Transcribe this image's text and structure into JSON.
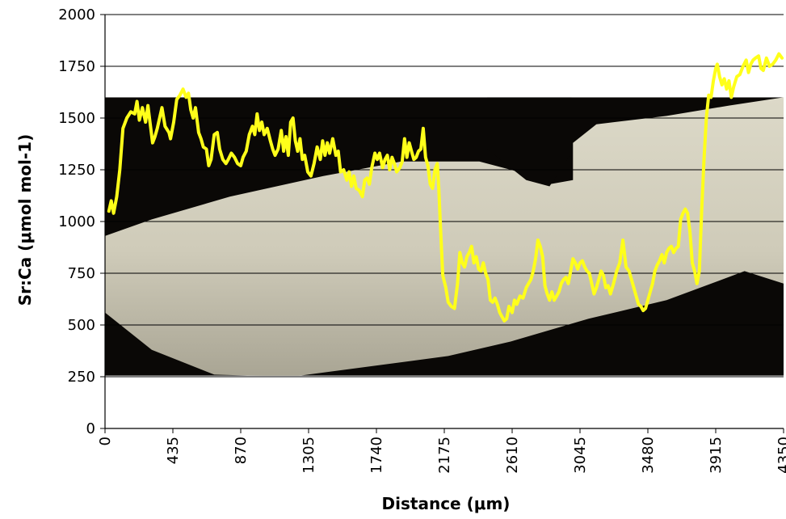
{
  "chart_data": {
    "type": "line",
    "xlabel": "Distance (μm)",
    "ylabel": "Sr:Ca (μmol mol-1)",
    "xlim": [
      0,
      4350
    ],
    "ylim": [
      0,
      2000
    ],
    "x_ticks": [
      0,
      435,
      870,
      1305,
      1740,
      2175,
      2610,
      3045,
      3480,
      3915,
      4350
    ],
    "y_ticks": [
      0,
      250,
      500,
      750,
      1000,
      1250,
      1500,
      1750,
      2000
    ],
    "grid": "horizontal",
    "background_image": {
      "description_icon": "otolith-photo",
      "x_range": [
        0,
        4350
      ],
      "y_range": [
        255,
        1600
      ]
    },
    "colors": {
      "line": "#ffff1a",
      "photo_bg": "#0a0806",
      "otolith": "#d2cfbf"
    },
    "series": [
      {
        "points": [
          [
            25,
            1050
          ],
          [
            40,
            1100
          ],
          [
            55,
            1040
          ],
          [
            75,
            1120
          ],
          [
            95,
            1250
          ],
          [
            115,
            1450
          ],
          [
            140,
            1500
          ],
          [
            165,
            1530
          ],
          [
            190,
            1520
          ],
          [
            205,
            1580
          ],
          [
            220,
            1490
          ],
          [
            240,
            1550
          ],
          [
            260,
            1480
          ],
          [
            275,
            1560
          ],
          [
            290,
            1470
          ],
          [
            305,
            1380
          ],
          [
            320,
            1410
          ],
          [
            335,
            1450
          ],
          [
            350,
            1500
          ],
          [
            365,
            1550
          ],
          [
            385,
            1460
          ],
          [
            410,
            1430
          ],
          [
            420,
            1400
          ],
          [
            440,
            1480
          ],
          [
            460,
            1590
          ],
          [
            480,
            1610
          ],
          [
            500,
            1640
          ],
          [
            520,
            1600
          ],
          [
            535,
            1620
          ],
          [
            550,
            1540
          ],
          [
            565,
            1500
          ],
          [
            580,
            1550
          ],
          [
            600,
            1430
          ],
          [
            615,
            1400
          ],
          [
            630,
            1360
          ],
          [
            650,
            1350
          ],
          [
            665,
            1270
          ],
          [
            680,
            1300
          ],
          [
            700,
            1420
          ],
          [
            720,
            1430
          ],
          [
            735,
            1350
          ],
          [
            755,
            1300
          ],
          [
            775,
            1280
          ],
          [
            790,
            1300
          ],
          [
            810,
            1330
          ],
          [
            830,
            1310
          ],
          [
            850,
            1280
          ],
          [
            870,
            1270
          ],
          [
            885,
            1310
          ],
          [
            905,
            1340
          ],
          [
            925,
            1420
          ],
          [
            945,
            1460
          ],
          [
            960,
            1420
          ],
          [
            975,
            1520
          ],
          [
            990,
            1440
          ],
          [
            1005,
            1480
          ],
          [
            1020,
            1420
          ],
          [
            1040,
            1450
          ],
          [
            1060,
            1390
          ],
          [
            1075,
            1350
          ],
          [
            1090,
            1320
          ],
          [
            1110,
            1350
          ],
          [
            1130,
            1440
          ],
          [
            1145,
            1340
          ],
          [
            1160,
            1410
          ],
          [
            1175,
            1320
          ],
          [
            1190,
            1480
          ],
          [
            1205,
            1500
          ],
          [
            1220,
            1390
          ],
          [
            1235,
            1340
          ],
          [
            1250,
            1400
          ],
          [
            1265,
            1300
          ],
          [
            1280,
            1320
          ],
          [
            1300,
            1240
          ],
          [
            1320,
            1220
          ],
          [
            1340,
            1280
          ],
          [
            1360,
            1360
          ],
          [
            1380,
            1300
          ],
          [
            1395,
            1390
          ],
          [
            1410,
            1320
          ],
          [
            1425,
            1380
          ],
          [
            1440,
            1330
          ],
          [
            1460,
            1400
          ],
          [
            1480,
            1320
          ],
          [
            1495,
            1340
          ],
          [
            1510,
            1240
          ],
          [
            1530,
            1250
          ],
          [
            1550,
            1200
          ],
          [
            1565,
            1240
          ],
          [
            1580,
            1170
          ],
          [
            1595,
            1220
          ],
          [
            1610,
            1160
          ],
          [
            1630,
            1150
          ],
          [
            1650,
            1120
          ],
          [
            1665,
            1200
          ],
          [
            1680,
            1210
          ],
          [
            1695,
            1180
          ],
          [
            1710,
            1260
          ],
          [
            1730,
            1330
          ],
          [
            1745,
            1300
          ],
          [
            1760,
            1330
          ],
          [
            1780,
            1260
          ],
          [
            1795,
            1300
          ],
          [
            1810,
            1320
          ],
          [
            1825,
            1250
          ],
          [
            1840,
            1310
          ],
          [
            1855,
            1280
          ],
          [
            1870,
            1240
          ],
          [
            1890,
            1260
          ],
          [
            1905,
            1290
          ],
          [
            1920,
            1400
          ],
          [
            1935,
            1310
          ],
          [
            1950,
            1380
          ],
          [
            1965,
            1340
          ],
          [
            1980,
            1300
          ],
          [
            1995,
            1310
          ],
          [
            2010,
            1340
          ],
          [
            2025,
            1350
          ],
          [
            2040,
            1450
          ],
          [
            2055,
            1310
          ],
          [
            2070,
            1270
          ],
          [
            2085,
            1180
          ],
          [
            2100,
            1160
          ],
          [
            2115,
            1250
          ],
          [
            2130,
            1280
          ],
          [
            2140,
            1160
          ],
          [
            2150,
            980
          ],
          [
            2165,
            740
          ],
          [
            2185,
            680
          ],
          [
            2200,
            610
          ],
          [
            2220,
            590
          ],
          [
            2240,
            580
          ],
          [
            2260,
            700
          ],
          [
            2275,
            850
          ],
          [
            2290,
            800
          ],
          [
            2305,
            780
          ],
          [
            2320,
            830
          ],
          [
            2335,
            850
          ],
          [
            2350,
            880
          ],
          [
            2365,
            800
          ],
          [
            2380,
            830
          ],
          [
            2395,
            770
          ],
          [
            2410,
            760
          ],
          [
            2425,
            800
          ],
          [
            2440,
            750
          ],
          [
            2455,
            720
          ],
          [
            2470,
            620
          ],
          [
            2485,
            610
          ],
          [
            2500,
            630
          ],
          [
            2515,
            600
          ],
          [
            2530,
            560
          ],
          [
            2545,
            540
          ],
          [
            2560,
            520
          ],
          [
            2575,
            530
          ],
          [
            2590,
            590
          ],
          [
            2610,
            560
          ],
          [
            2625,
            620
          ],
          [
            2640,
            600
          ],
          [
            2660,
            640
          ],
          [
            2680,
            630
          ],
          [
            2700,
            680
          ],
          [
            2715,
            700
          ],
          [
            2730,
            720
          ],
          [
            2745,
            760
          ],
          [
            2760,
            820
          ],
          [
            2775,
            910
          ],
          [
            2790,
            880
          ],
          [
            2805,
            830
          ],
          [
            2820,
            690
          ],
          [
            2835,
            650
          ],
          [
            2850,
            620
          ],
          [
            2865,
            660
          ],
          [
            2880,
            620
          ],
          [
            2895,
            640
          ],
          [
            2910,
            660
          ],
          [
            2925,
            700
          ],
          [
            2940,
            720
          ],
          [
            2955,
            730
          ],
          [
            2970,
            700
          ],
          [
            2985,
            760
          ],
          [
            3000,
            820
          ],
          [
            3015,
            800
          ],
          [
            3030,
            770
          ],
          [
            3045,
            800
          ],
          [
            3060,
            810
          ],
          [
            3075,
            780
          ],
          [
            3090,
            760
          ],
          [
            3105,
            750
          ],
          [
            3120,
            700
          ],
          [
            3135,
            650
          ],
          [
            3150,
            680
          ],
          [
            3165,
            720
          ],
          [
            3180,
            760
          ],
          [
            3195,
            740
          ],
          [
            3210,
            680
          ],
          [
            3225,
            690
          ],
          [
            3240,
            650
          ],
          [
            3260,
            700
          ],
          [
            3280,
            760
          ],
          [
            3300,
            800
          ],
          [
            3320,
            910
          ],
          [
            3340,
            780
          ],
          [
            3360,
            760
          ],
          [
            3375,
            720
          ],
          [
            3390,
            680
          ],
          [
            3405,
            640
          ],
          [
            3420,
            600
          ],
          [
            3435,
            590
          ],
          [
            3450,
            570
          ],
          [
            3465,
            580
          ],
          [
            3480,
            620
          ],
          [
            3495,
            660
          ],
          [
            3510,
            700
          ],
          [
            3525,
            760
          ],
          [
            3540,
            790
          ],
          [
            3555,
            810
          ],
          [
            3570,
            840
          ],
          [
            3585,
            800
          ],
          [
            3600,
            850
          ],
          [
            3615,
            870
          ],
          [
            3630,
            880
          ],
          [
            3645,
            850
          ],
          [
            3660,
            870
          ],
          [
            3675,
            880
          ],
          [
            3690,
            1010
          ],
          [
            3705,
            1040
          ],
          [
            3720,
            1060
          ],
          [
            3735,
            1040
          ],
          [
            3750,
            950
          ],
          [
            3765,
            800
          ],
          [
            3780,
            760
          ],
          [
            3795,
            700
          ],
          [
            3810,
            760
          ],
          [
            3825,
            1050
          ],
          [
            3840,
            1300
          ],
          [
            3855,
            1500
          ],
          [
            3870,
            1610
          ],
          [
            3885,
            1600
          ],
          [
            3900,
            1680
          ],
          [
            3915,
            1740
          ],
          [
            3925,
            1760
          ],
          [
            3940,
            1700
          ],
          [
            3955,
            1660
          ],
          [
            3970,
            1690
          ],
          [
            3985,
            1640
          ],
          [
            4000,
            1680
          ],
          [
            4015,
            1600
          ],
          [
            4030,
            1650
          ],
          [
            4050,
            1700
          ],
          [
            4070,
            1710
          ],
          [
            4090,
            1750
          ],
          [
            4110,
            1780
          ],
          [
            4125,
            1720
          ],
          [
            4140,
            1760
          ],
          [
            4155,
            1780
          ],
          [
            4170,
            1790
          ],
          [
            4190,
            1800
          ],
          [
            4205,
            1740
          ],
          [
            4220,
            1730
          ],
          [
            4240,
            1790
          ],
          [
            4260,
            1750
          ],
          [
            4280,
            1760
          ],
          [
            4300,
            1780
          ],
          [
            4320,
            1810
          ],
          [
            4340,
            1790
          ]
        ]
      }
    ]
  }
}
